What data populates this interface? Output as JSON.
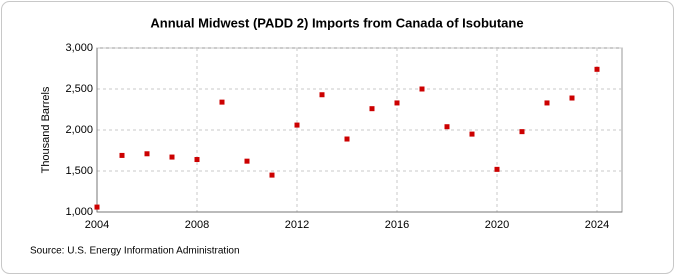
{
  "chart_data": {
    "type": "scatter",
    "title": "Annual Midwest (PADD 2) Imports from Canada of Isobutane",
    "y_label": "Thousand Barrels",
    "source": "Source: U.S. Energy Information Administration",
    "x": [
      2004,
      2005,
      2006,
      2007,
      2008,
      2009,
      2010,
      2011,
      2012,
      2013,
      2014,
      2015,
      2016,
      2017,
      2018,
      2019,
      2020,
      2021,
      2022,
      2023,
      2024
    ],
    "values": [
      1060,
      1690,
      1710,
      1670,
      1640,
      2340,
      1620,
      1450,
      2060,
      2430,
      1890,
      2260,
      2330,
      2500,
      2040,
      1950,
      1520,
      1980,
      2330,
      2390,
      2740
    ],
    "color": "#cc0000",
    "xlim": [
      2004,
      2025
    ],
    "xticks": [
      2004,
      2008,
      2012,
      2016,
      2020,
      2024
    ],
    "ylim": [
      1000,
      3000
    ],
    "yticks": [
      {
        "value": 1000,
        "label": "1,000"
      },
      {
        "value": 1500,
        "label": "1,500"
      },
      {
        "value": 2000,
        "label": "2,000"
      },
      {
        "value": 2500,
        "label": "2,500"
      },
      {
        "value": 3000,
        "label": "3,000"
      }
    ],
    "grid": true
  }
}
